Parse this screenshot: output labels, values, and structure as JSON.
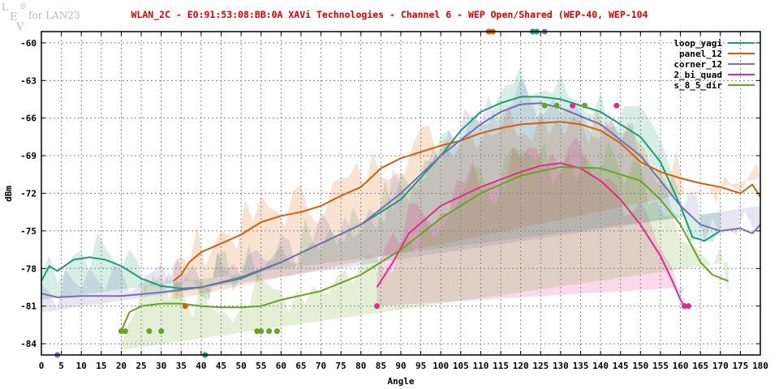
{
  "watermark": {
    "logo": "LEV ©",
    "text": "for LAN23"
  },
  "chart_data": {
    "type": "line",
    "title": "WLAN_2C - E0:91:53:08:BB:0A XAVi Technologies - Channel 6 - WEP Open/Shared (WEP-40, WEP-104",
    "xlabel": "Angle",
    "ylabel": "dBm",
    "xlim": [
      0,
      180
    ],
    "ylim": [
      -84.9,
      -59.1
    ],
    "xticks": [
      0,
      5,
      10,
      15,
      20,
      25,
      30,
      35,
      40,
      45,
      50,
      55,
      60,
      65,
      70,
      75,
      80,
      85,
      90,
      95,
      100,
      105,
      110,
      115,
      120,
      125,
      130,
      135,
      140,
      145,
      150,
      155,
      160,
      165,
      170,
      175,
      180
    ],
    "yticks": [
      -60,
      -63,
      -66,
      -69,
      -72,
      -75,
      -78,
      -81,
      -84
    ],
    "grid": true,
    "legend_position": "top-right",
    "series": [
      {
        "name": "loop_yagi",
        "color": "#1b9e77",
        "x": [
          0,
          2,
          4,
          8,
          12,
          16,
          20,
          25,
          30,
          35,
          40,
          50,
          60,
          70,
          80,
          90,
          100,
          105,
          110,
          115,
          120,
          125,
          130,
          140,
          150,
          155,
          160,
          163,
          166,
          170
        ],
        "y": [
          -79,
          -77.8,
          -78.2,
          -77.3,
          -77.1,
          -77.3,
          -77.8,
          -78.8,
          -79.4,
          -79.6,
          -79.5,
          -78.8,
          -77.5,
          -76,
          -74.5,
          -72.5,
          -69,
          -67,
          -65.5,
          -64.8,
          -64.3,
          -64.3,
          -64.5,
          -65.5,
          -67.5,
          -69.5,
          -73,
          -75.5,
          -75.8,
          -75
        ],
        "markers": [
          [
            123,
            -59.1
          ],
          [
            124,
            -59.1
          ],
          [
            41,
            -84.9
          ]
        ]
      },
      {
        "name": "panel_12",
        "color": "#d95f02",
        "x": [
          33,
          35,
          37,
          40,
          45,
          50,
          55,
          60,
          65,
          70,
          75,
          80,
          85,
          90,
          95,
          100,
          105,
          110,
          115,
          120,
          130,
          135,
          140,
          145,
          150,
          155,
          160,
          165,
          170,
          175,
          178,
          180
        ],
        "y": [
          -79,
          -78.5,
          -77.5,
          -76.7,
          -76,
          -75.3,
          -74.3,
          -73.8,
          -73.5,
          -73,
          -72.2,
          -71.5,
          -70,
          -69.2,
          -68.7,
          -68.2,
          -67.8,
          -67.2,
          -66.8,
          -66.5,
          -66.3,
          -66.5,
          -67,
          -68,
          -69.5,
          -70.3,
          -70.8,
          -71.2,
          -71.5,
          -72,
          -71.3,
          -72.3
        ],
        "markers": [
          [
            112,
            -59.1
          ],
          [
            113,
            -59.1
          ],
          [
            36,
            -81
          ]
        ]
      },
      {
        "name": "corner_12",
        "color": "#7570b3",
        "x": [
          0,
          4,
          10,
          20,
          30,
          40,
          50,
          60,
          70,
          80,
          90,
          100,
          110,
          115,
          120,
          125,
          130,
          140,
          150,
          155,
          160,
          165,
          170,
          175,
          178,
          180
        ],
        "y": [
          -80,
          -80.3,
          -80.2,
          -80.2,
          -79.9,
          -79.5,
          -78.7,
          -77.5,
          -76,
          -74.5,
          -72,
          -69,
          -66.5,
          -65.5,
          -64.9,
          -64.8,
          -65.2,
          -66.5,
          -69,
          -71,
          -73,
          -74.5,
          -75,
          -74.8,
          -75.2,
          -74.5
        ],
        "markers": [
          [
            126,
            -59.1
          ],
          [
            4,
            -84.9
          ]
        ]
      },
      {
        "name": "2_bi_quad",
        "color": "#e7298a",
        "x": [
          84,
          88,
          92,
          100,
          110,
          120,
          125,
          130,
          135,
          140,
          145,
          150,
          155,
          158,
          160,
          161
        ],
        "y": [
          -79.5,
          -77.5,
          -75.2,
          -73,
          -71.5,
          -70.3,
          -69.8,
          -69.6,
          -70,
          -71,
          -72.5,
          -74.5,
          -77,
          -79,
          -80.5,
          -81
        ],
        "markers": [
          [
            133,
            -65
          ],
          [
            144,
            -65
          ],
          [
            84,
            -81
          ],
          [
            161,
            -81
          ],
          [
            162,
            -81
          ]
        ]
      },
      {
        "name": "s_8_5_dir",
        "color": "#66a61e",
        "x": [
          20,
          22,
          25,
          30,
          35,
          40,
          45,
          50,
          55,
          60,
          70,
          80,
          90,
          100,
          110,
          120,
          130,
          140,
          150,
          155,
          160,
          165,
          168,
          172
        ],
        "y": [
          -83,
          -81.5,
          -81,
          -80.8,
          -80.8,
          -81,
          -81.1,
          -81.1,
          -81,
          -80.5,
          -79.8,
          -78.5,
          -76.5,
          -74,
          -72,
          -70.6,
          -69.9,
          -70,
          -71,
          -72.5,
          -74.5,
          -77.5,
          -78.5,
          -79
        ],
        "markers": [
          [
            126,
            -65
          ],
          [
            129,
            -65
          ],
          [
            136,
            -65
          ],
          [
            20,
            -83
          ],
          [
            21,
            -83
          ],
          [
            27,
            -83
          ],
          [
            30,
            -83
          ],
          [
            54,
            -83
          ],
          [
            55,
            -83
          ],
          [
            57,
            -83
          ],
          [
            59,
            -83
          ]
        ]
      }
    ]
  }
}
